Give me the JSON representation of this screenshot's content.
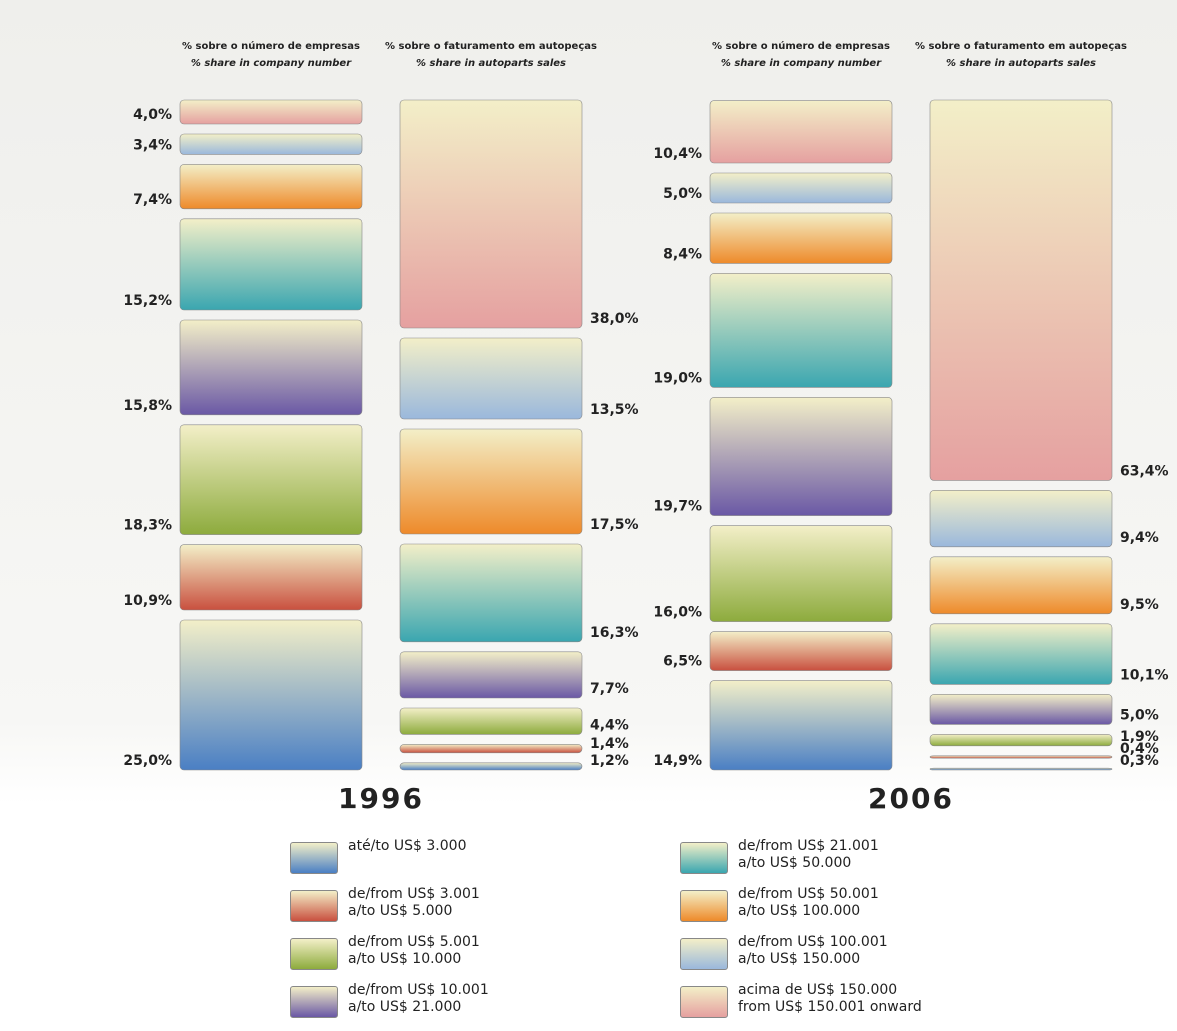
{
  "chart_data": {
    "type": "stacked-bar",
    "categories": [
      "% sobre o número de empresas",
      "% sobre o faturamento em autopeças",
      "% sobre o número de empresas",
      "% sobre o faturamento em autopeças"
    ],
    "category_translations": [
      "% share in company number",
      "% share in autoparts sales",
      "% share in company number",
      "% share in autoparts sales"
    ],
    "groups": [
      "1996",
      "2006"
    ],
    "series": [
      {
        "name": "até/to US$ 3.000",
        "color": "#4a7fc4",
        "values": [
          25.0,
          1.2,
          14.9,
          0.3
        ],
        "value_labels": [
          "25,0%",
          "1,2%",
          "14,9%",
          "0,3%"
        ]
      },
      {
        "name": "de/from US$ 3.001\na/to US$ 5.000",
        "color": "#c9503f",
        "values": [
          10.9,
          1.4,
          6.5,
          0.4
        ],
        "value_labels": [
          "10,9%",
          "1,4%",
          "6,5%",
          "0,4%"
        ]
      },
      {
        "name": "de/from US$ 5.001\na/to US$ 10.000",
        "color": "#8dab3d",
        "values": [
          18.3,
          4.4,
          16.0,
          1.9
        ],
        "value_labels": [
          "18,3%",
          "4,4%",
          "16,0%",
          "1,9%"
        ]
      },
      {
        "name": "de/from US$ 10.001\na/to US$ 21.000",
        "color": "#6a58a5",
        "values": [
          15.8,
          7.7,
          19.7,
          5.0
        ],
        "value_labels": [
          "15,8%",
          "7,7%",
          "19,7%",
          "5,0%"
        ]
      },
      {
        "name": "de/from US$ 21.001\na/to US$ 50.000",
        "color": "#3aa6b0",
        "values": [
          15.2,
          16.3,
          19.0,
          10.1
        ],
        "value_labels": [
          "15,2%",
          "16,3%",
          "19,0%",
          "10,1%"
        ]
      },
      {
        "name": "de/from US$ 50.001\na/to US$ 100.000",
        "color": "#ee8a2a",
        "values": [
          7.4,
          17.5,
          8.4,
          9.5
        ],
        "value_labels": [
          "7,4%",
          "17,5%",
          "8,4%",
          "9,5%"
        ]
      },
      {
        "name": "de/from US$ 100.001\na/to US$ 150.000",
        "color": "#9ab8dc",
        "values": [
          3.4,
          13.5,
          5.0,
          9.4
        ],
        "value_labels": [
          "3,4%",
          "13,5%",
          "5,0%",
          "9,4%"
        ]
      },
      {
        "name": "acima de US$ 150.000\nfrom US$ 150.001 onward",
        "color": "#e5a0a0",
        "values": [
          4.0,
          38.0,
          10.4,
          63.4
        ],
        "value_labels": [
          "4,0%",
          "38,0%",
          "10,4%",
          "63,4%"
        ]
      }
    ]
  }
}
